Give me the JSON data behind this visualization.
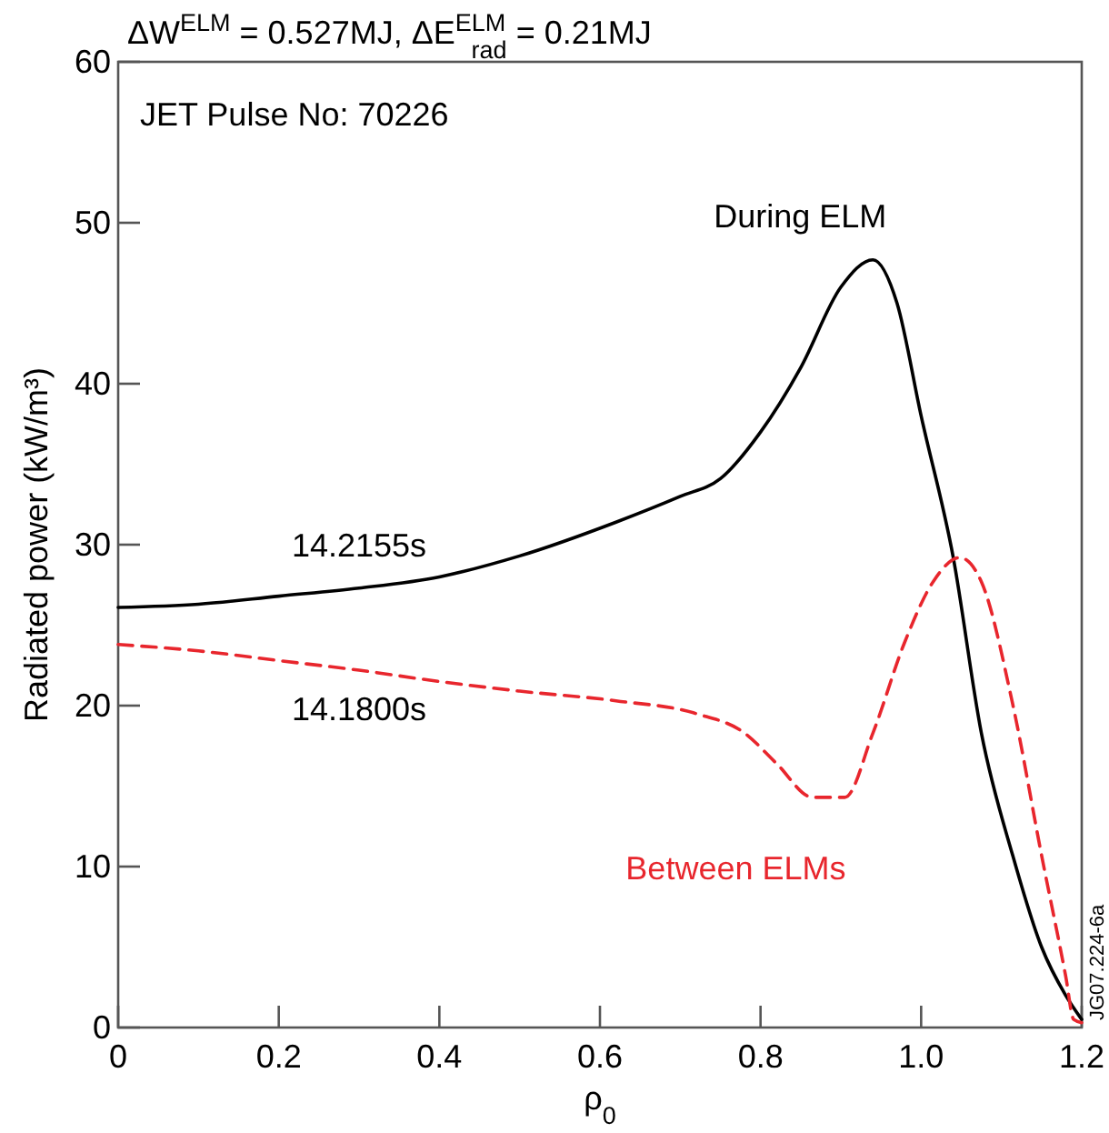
{
  "chart_data": {
    "type": "line",
    "title": "ΔW$^{ELM}$ = 0.527MJ, ΔE$^{ELM}$$_{rad}$ = 0.21MJ",
    "xlabel": "ρ$_{0}$",
    "ylabel": "Radiated power (kW/m³)",
    "xlim": [
      0,
      1.2
    ],
    "ylim": [
      0,
      60
    ],
    "xticks": [
      0,
      0.2,
      0.4,
      0.6,
      0.8,
      {
        "value": 1,
        "label": "1.0"
      },
      1.2
    ],
    "yticks": [
      0,
      10,
      20,
      30,
      40,
      50,
      60
    ],
    "grid": false,
    "series": [
      {
        "name": "During ELM",
        "color": "#000000",
        "line_style": "solid",
        "x": [
          0,
          0.1,
          0.2,
          0.3,
          0.4,
          0.5,
          0.62,
          0.7,
          0.75,
          0.8,
          0.85,
          0.9,
          0.94,
          0.97,
          1.0,
          1.04,
          1.075,
          1.114,
          1.15,
          1.18,
          1.2
        ],
        "values": [
          26.1,
          26.3,
          26.8,
          27.3,
          28,
          29.3,
          31.4,
          33,
          34.1,
          37,
          41,
          46,
          47.7,
          45,
          38,
          29.2,
          18.3,
          10.7,
          5,
          2,
          0.5
        ]
      },
      {
        "name": "Between ELMs",
        "color": "#e8262d",
        "line_style": "dashed",
        "x": [
          0,
          0.1,
          0.2,
          0.3,
          0.4,
          0.5,
          0.62,
          0.72,
          0.78,
          0.82,
          0.865,
          0.905,
          0.94,
          0.98,
          1.015,
          1.048,
          1.075,
          1.114,
          1.15,
          1.18,
          1.19,
          1.2
        ],
        "values": [
          23.8,
          23.4,
          22.8,
          22.2,
          21.5,
          20.9,
          20.3,
          19.5,
          18.3,
          16.4,
          14.3,
          14.3,
          18.3,
          24,
          27.7,
          29.2,
          27.7,
          20.1,
          10.7,
          3.2,
          0.5,
          0.3
        ]
      }
    ],
    "annotations": [
      "JET Pulse No: 70226",
      "14.2155s",
      "14.1800s",
      "JG07.224-6a"
    ]
  }
}
